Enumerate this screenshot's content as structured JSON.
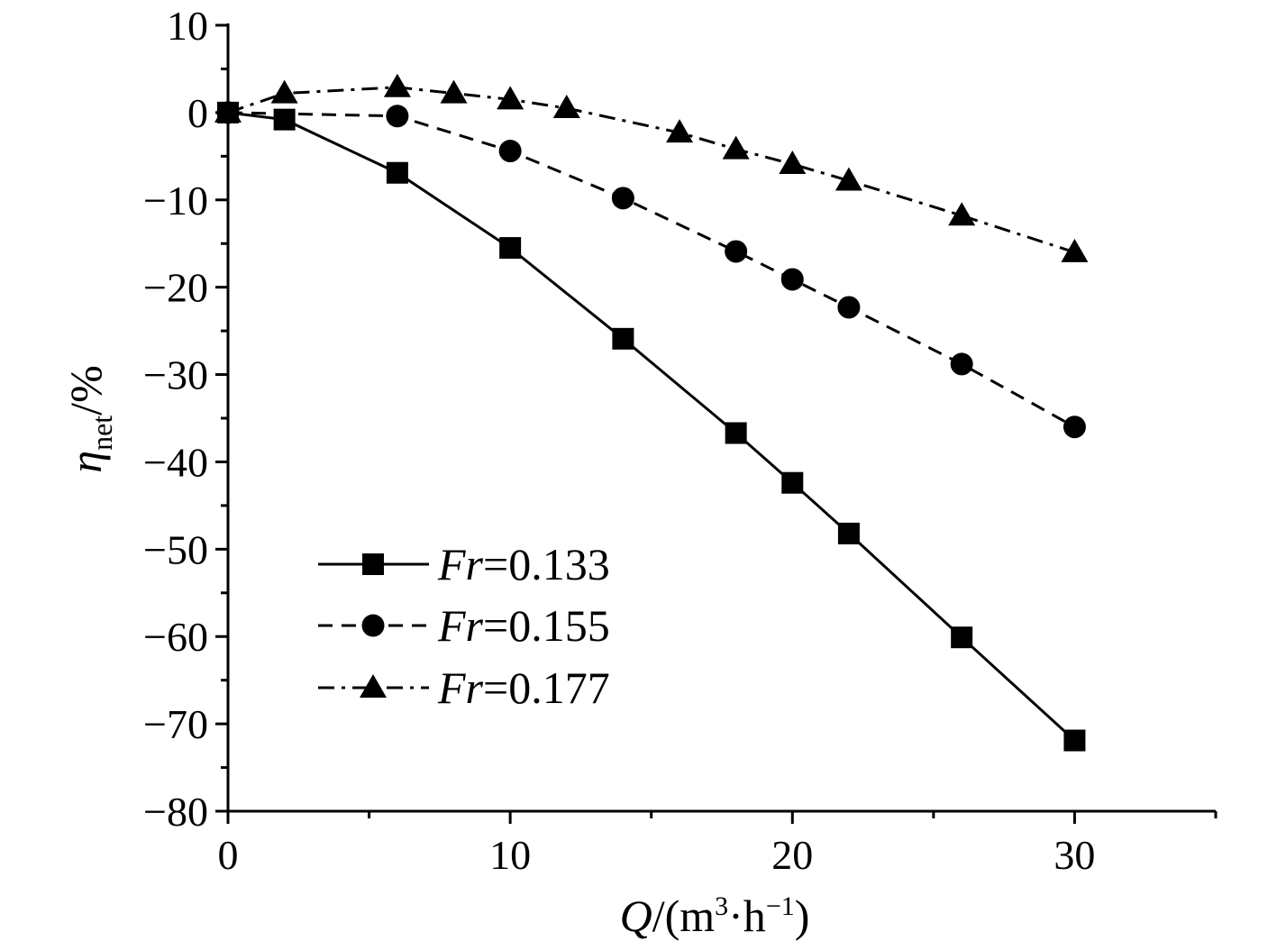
{
  "chart_data": {
    "type": "line",
    "title": "",
    "xlabel": {
      "var": "Q",
      "slash": "/",
      "open": "(m",
      "sup1": "3",
      "mid": "·h",
      "sup2": "−1",
      "close": ")"
    },
    "ylabel": {
      "var": "η",
      "sub": "net",
      "unit": "/%"
    },
    "xlim": [
      0,
      35
    ],
    "ylim": [
      -80,
      10
    ],
    "xticks": [
      0,
      10,
      20,
      30
    ],
    "xtick_labels": [
      "0",
      "10",
      "20",
      "30"
    ],
    "yticks": [
      10,
      0,
      -10,
      -20,
      -30,
      -40,
      -50,
      -60,
      -70,
      -80
    ],
    "ytick_labels": [
      "10",
      "0",
      "−10",
      "−20",
      "−30",
      "−40",
      "−50",
      "−60",
      "−70",
      "−80"
    ],
    "grid": false,
    "legend_position": "bottom-left",
    "series": [
      {
        "name": "Fr=0.133",
        "legend_var": "Fr",
        "legend_value": "=0.133",
        "marker": "square",
        "line": "solid",
        "x": [
          0,
          2,
          6,
          10,
          14,
          18,
          20,
          22,
          26,
          30
        ],
        "y": [
          0,
          -0.8,
          -6.9,
          -15.5,
          -25.9,
          -36.7,
          -42.4,
          -48.2,
          -60.1,
          -71.9
        ]
      },
      {
        "name": "Fr=0.155",
        "legend_var": "Fr",
        "legend_value": "=0.155",
        "marker": "circle",
        "line": "dashed",
        "x": [
          0,
          6,
          10,
          14,
          18,
          20,
          22,
          26,
          30
        ],
        "y": [
          0,
          -0.4,
          -4.4,
          -9.8,
          -15.9,
          -19.1,
          -22.3,
          -28.8,
          -36.0
        ]
      },
      {
        "name": "Fr=0.177",
        "legend_var": "Fr",
        "legend_value": "=0.177",
        "marker": "triangle",
        "line": "dashdot",
        "x": [
          0,
          2,
          6,
          8,
          10,
          12,
          16,
          18,
          20,
          22,
          26,
          30
        ],
        "y": [
          0,
          2.2,
          2.9,
          2.2,
          1.5,
          0.5,
          -2.3,
          -4.2,
          -5.9,
          -7.8,
          -11.8,
          -16.0
        ]
      }
    ],
    "colors": {
      "line": "#000000",
      "background": "#ffffff"
    }
  }
}
